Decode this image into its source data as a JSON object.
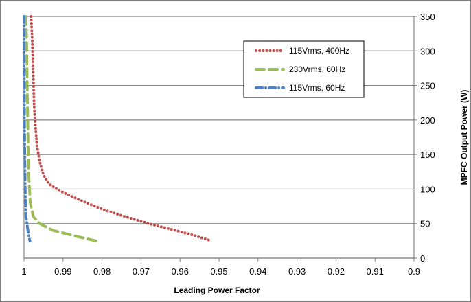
{
  "chart_data": {
    "type": "line",
    "title": "",
    "xlabel": "Leading Power Factor",
    "ylabel": "MPFC Output Power (W)",
    "xlim": [
      1.0,
      0.9
    ],
    "ylim": [
      0,
      350
    ],
    "x_reversed": true,
    "x_ticks": [
      1,
      0.99,
      0.98,
      0.97,
      0.96,
      0.95,
      0.94,
      0.93,
      0.92,
      0.91,
      0.9
    ],
    "x_tick_labels": [
      "1",
      "0.99",
      "0.98",
      "0.97",
      "0.96",
      "0.95",
      "0.94",
      "0.93",
      "0.92",
      "0.91",
      "0.9"
    ],
    "y_ticks": [
      0,
      50,
      100,
      150,
      200,
      250,
      300,
      350
    ],
    "y_tick_labels": [
      "0",
      "50",
      "100",
      "150",
      "200",
      "250",
      "300",
      "350"
    ],
    "y_axis_side": "right",
    "grid": {
      "horizontal": true,
      "vertical": false
    },
    "legend_position": "top-right",
    "series": [
      {
        "name": "115Vrms, 400Hz",
        "color": "#c0504d",
        "style": "dotted",
        "x": [
          0.9982,
          0.998,
          0.9978,
          0.9976,
          0.9974,
          0.997,
          0.9966,
          0.996,
          0.995,
          0.9935,
          0.991,
          0.988,
          0.984,
          0.9795,
          0.974,
          0.968,
          0.961,
          0.9565,
          0.952
        ],
        "y": [
          350,
          330,
          300,
          260,
          220,
          185,
          160,
          140,
          120,
          107,
          98,
          90,
          80,
          70,
          60,
          50,
          40,
          33,
          25
        ]
      },
      {
        "name": "230Vrms, 60Hz",
        "color": "#9bbb59",
        "style": "dashed",
        "x": [
          0.9995,
          0.9994,
          0.9993,
          0.9992,
          0.9991,
          0.999,
          0.9989,
          0.9987,
          0.9984,
          0.9976,
          0.996,
          0.9925,
          0.987,
          0.9815
        ],
        "y": [
          350,
          330,
          300,
          260,
          220,
          180,
          140,
          110,
          80,
          60,
          50,
          40,
          32,
          25
        ]
      },
      {
        "name": "115Vrms, 60Hz",
        "color": "#4f81bd",
        "style": "dash-dot",
        "x": [
          1.0,
          1.0,
          0.9999,
          0.9999,
          0.9998,
          0.9997,
          0.9995,
          0.999,
          0.9985
        ],
        "y": [
          350,
          300,
          250,
          200,
          150,
          100,
          60,
          40,
          25
        ]
      }
    ]
  }
}
